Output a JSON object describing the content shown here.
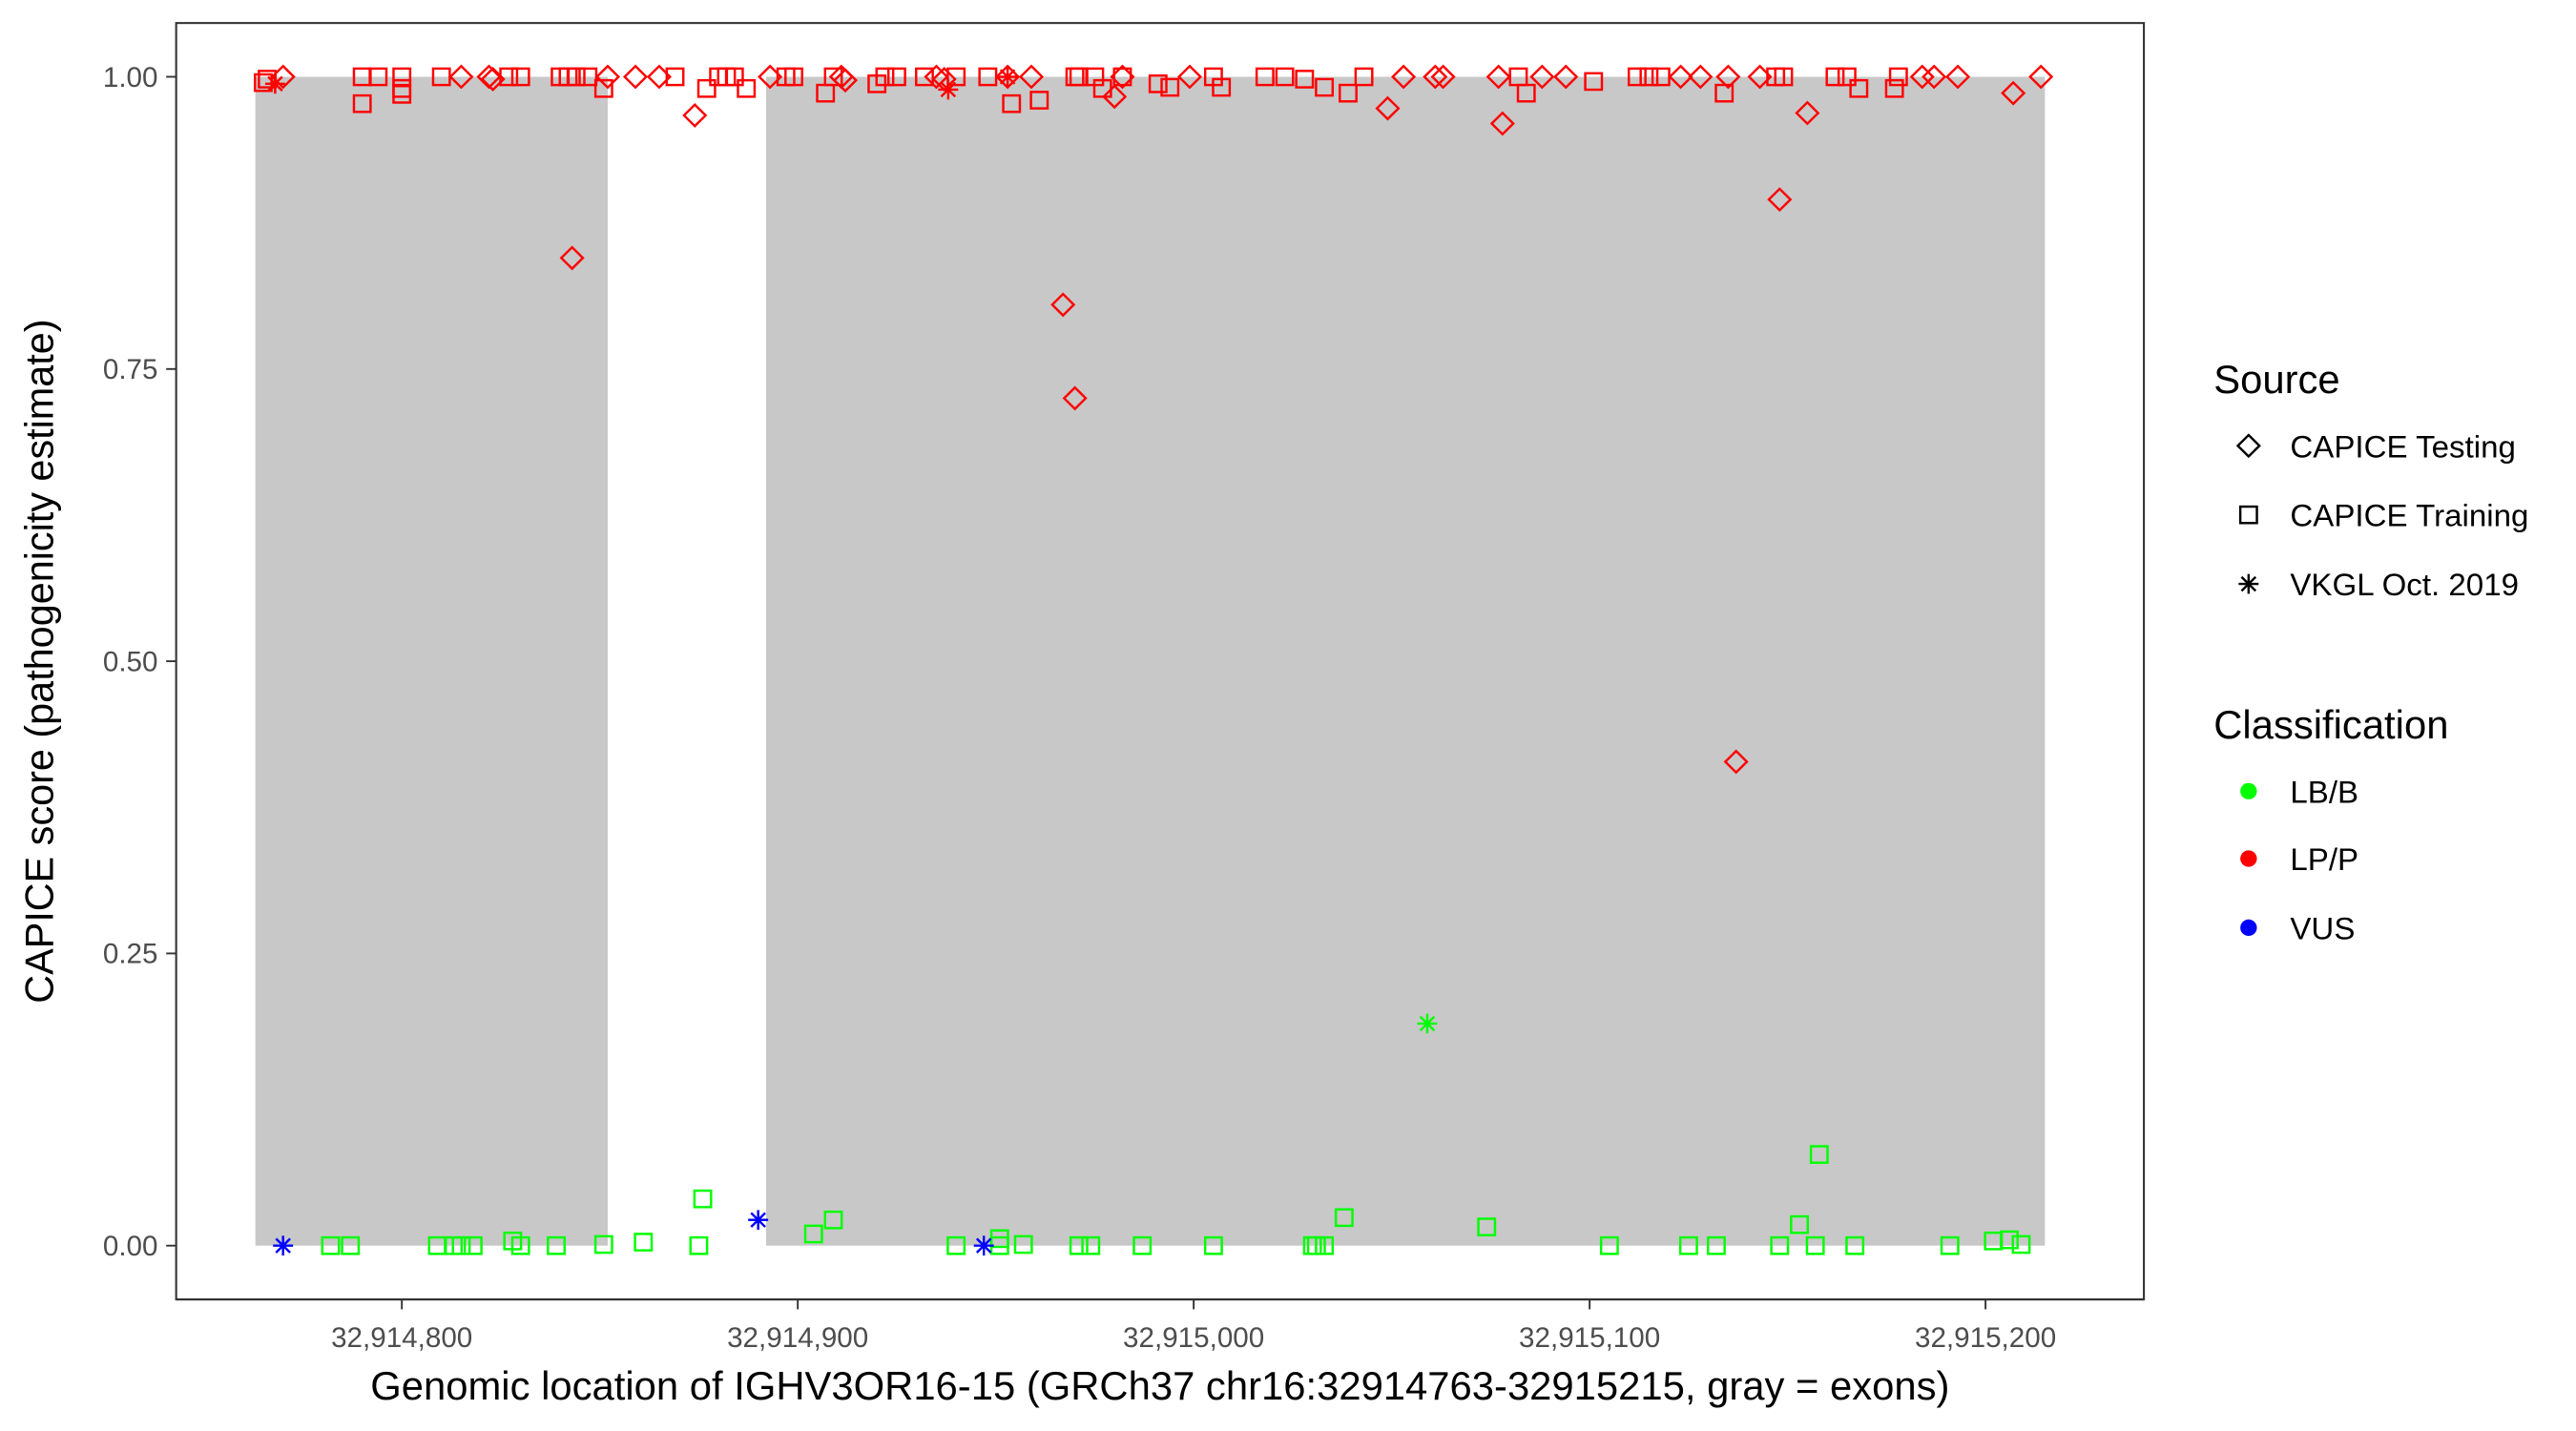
{
  "chart_data": {
    "type": "scatter",
    "xlabel": "Genomic location of IGHV3OR16-15 (GRCh37 chr16:32914763-32915215, gray = exons)",
    "ylabel": "CAPICE score (pathogenicity estimate)",
    "xlim": [
      32914743,
      32915240
    ],
    "ylim": [
      -0.046,
      1.046
    ],
    "x_ticks": [
      32914800,
      32914900,
      32915000,
      32915100,
      32915200
    ],
    "x_tick_labels": [
      "32,914,800",
      "32,914,900",
      "32,915,000",
      "32,915,100",
      "32,915,200"
    ],
    "y_ticks": [
      0,
      0.25,
      0.5,
      0.75,
      1.0
    ],
    "y_tick_labels": [
      "0.00",
      "0.25",
      "0.50",
      "0.75",
      "1.00"
    ],
    "grid": false,
    "exons": [
      [
        32914763,
        32914852
      ],
      [
        32914892,
        32915215
      ]
    ],
    "exon_color": "#c8c8c8",
    "legend_placement": "right",
    "legends": [
      {
        "title": "Source",
        "entries": [
          {
            "label": "CAPICE Testing",
            "shape": "diamond"
          },
          {
            "label": "CAPICE Training",
            "shape": "square"
          },
          {
            "label": "VKGL Oct. 2019",
            "shape": "asterisk"
          }
        ]
      },
      {
        "title": "Classification",
        "entries": [
          {
            "label": "LB/B",
            "color": "#00ff00"
          },
          {
            "label": "LP/P",
            "color": "#ff0000"
          },
          {
            "label": "VUS",
            "color": "#0000ff"
          }
        ]
      }
    ],
    "series": [
      {
        "source": "CAPICE Training",
        "classification": "LP/P",
        "points": [
          [
            32914765,
            0.995
          ],
          [
            32914766,
            0.998
          ],
          [
            32914790,
            0.977
          ],
          [
            32914790,
            1.0
          ],
          [
            32914794,
            1.0
          ],
          [
            32914800,
            1.0
          ],
          [
            32914800,
            0.99
          ],
          [
            32914800,
            0.985
          ],
          [
            32914810,
            1.0
          ],
          [
            32914827,
            1.0
          ],
          [
            32914830,
            1.0
          ],
          [
            32914840,
            1.0
          ],
          [
            32914842,
            1.0
          ],
          [
            32914844,
            1.0
          ],
          [
            32914847,
            1.0
          ],
          [
            32914851,
            0.99
          ],
          [
            32914869,
            1.0
          ],
          [
            32914877,
            0.99
          ],
          [
            32914880,
            1.0
          ],
          [
            32914882,
            1.0
          ],
          [
            32914884,
            1.0
          ],
          [
            32914887,
            0.99
          ],
          [
            32914897,
            1.0
          ],
          [
            32914899,
            1.0
          ],
          [
            32914907,
            0.986
          ],
          [
            32914909,
            1.0
          ],
          [
            32914920,
            0.994
          ],
          [
            32914922,
            1.0
          ],
          [
            32914925,
            1.0
          ],
          [
            32914932,
            1.0
          ],
          [
            32914940,
            1.0
          ],
          [
            32914948,
            1.0
          ],
          [
            32914954,
            0.977
          ],
          [
            32914961,
            0.98
          ],
          [
            32914970,
            1.0
          ],
          [
            32914971,
            1.0
          ],
          [
            32914975,
            1.0
          ],
          [
            32914977,
            0.99
          ],
          [
            32914982,
            1.0
          ],
          [
            32914991,
            0.994
          ],
          [
            32914994,
            0.991
          ],
          [
            32915005,
            1.0
          ],
          [
            32915007,
            0.991
          ],
          [
            32915018,
            1.0
          ],
          [
            32915023,
            1.0
          ],
          [
            32915028,
            0.998
          ],
          [
            32915033,
            0.991
          ],
          [
            32915039,
            0.986
          ],
          [
            32915043,
            1.0
          ],
          [
            32915082,
            1.0
          ],
          [
            32915084,
            0.986
          ],
          [
            32915101,
            0.996
          ],
          [
            32915112,
            1.0
          ],
          [
            32915115,
            1.0
          ],
          [
            32915118,
            1.0
          ],
          [
            32915134,
            0.986
          ],
          [
            32915147,
            1.0
          ],
          [
            32915149,
            1.0
          ],
          [
            32915162,
            1.0
          ],
          [
            32915165,
            1.0
          ],
          [
            32915168,
            0.99
          ],
          [
            32915177,
            0.99
          ],
          [
            32915178,
            1.0
          ]
        ]
      },
      {
        "source": "CAPICE Testing",
        "classification": "LP/P",
        "points": [
          [
            32914770,
            1.0
          ],
          [
            32914815,
            1.0
          ],
          [
            32914822,
            1.0
          ],
          [
            32914823,
            0.998
          ],
          [
            32914843,
            0.845
          ],
          [
            32914852,
            1.0
          ],
          [
            32914859,
            1.0
          ],
          [
            32914865,
            1.0
          ],
          [
            32914874,
            0.967
          ],
          [
            32914893,
            1.0
          ],
          [
            32914911,
            1.0
          ],
          [
            32914912,
            0.997
          ],
          [
            32914935,
            1.0
          ],
          [
            32914937,
            0.998
          ],
          [
            32914953,
            1.0
          ],
          [
            32914959,
            1.0
          ],
          [
            32914967,
            0.805
          ],
          [
            32914970,
            0.725
          ],
          [
            32914980,
            0.983
          ],
          [
            32914982,
            1.0
          ],
          [
            32914999,
            1.0
          ],
          [
            32915049,
            0.973
          ],
          [
            32915053,
            1.0
          ],
          [
            32915061,
            1.0
          ],
          [
            32915063,
            1.0
          ],
          [
            32915077,
            1.0
          ],
          [
            32915078,
            0.96
          ],
          [
            32915088,
            1.0
          ],
          [
            32915094,
            1.0
          ],
          [
            32915123,
            1.0
          ],
          [
            32915128,
            1.0
          ],
          [
            32915135,
            1.0
          ],
          [
            32915137,
            0.414
          ],
          [
            32915143,
            1.0
          ],
          [
            32915148,
            0.895
          ],
          [
            32915155,
            0.969
          ],
          [
            32915184,
            1.0
          ],
          [
            32915187,
            1.0
          ],
          [
            32915193,
            1.0
          ],
          [
            32915207,
            0.986
          ],
          [
            32915214,
            1.0
          ]
        ]
      },
      {
        "source": "VKGL Oct. 2019",
        "classification": "LP/P",
        "points": [
          [
            32914768,
            0.994
          ],
          [
            32914938,
            0.989
          ],
          [
            32914953,
            1.0
          ]
        ]
      },
      {
        "source": "CAPICE Training",
        "classification": "LB/B",
        "points": [
          [
            32914782,
            0.0
          ],
          [
            32914787,
            0.0
          ],
          [
            32914809,
            0.0
          ],
          [
            32914813,
            0.0
          ],
          [
            32914815,
            0.0
          ],
          [
            32914818,
            0.0
          ],
          [
            32914828,
            0.004
          ],
          [
            32914830,
            0.0
          ],
          [
            32914839,
            0.0
          ],
          [
            32914851,
            0.001
          ],
          [
            32914861,
            0.003
          ],
          [
            32914875,
            0.0
          ],
          [
            32914876,
            0.04
          ],
          [
            32914904,
            0.01
          ],
          [
            32914909,
            0.022
          ],
          [
            32914940,
            0.0
          ],
          [
            32914951,
            0.006
          ],
          [
            32914951,
            0.0
          ],
          [
            32914957,
            0.001
          ],
          [
            32914971,
            0.0
          ],
          [
            32914974,
            0.0
          ],
          [
            32914987,
            0.0
          ],
          [
            32915005,
            0.0
          ],
          [
            32915030,
            0.0
          ],
          [
            32915031,
            0.0
          ],
          [
            32915033,
            0.0
          ],
          [
            32915038,
            0.024
          ],
          [
            32915074,
            0.016
          ],
          [
            32915105,
            0.0
          ],
          [
            32915125,
            0.0
          ],
          [
            32915132,
            0.0
          ],
          [
            32915148,
            0.0
          ],
          [
            32915153,
            0.018
          ],
          [
            32915157,
            0.0
          ],
          [
            32915158,
            0.078
          ],
          [
            32915167,
            0.0
          ],
          [
            32915191,
            0.0
          ],
          [
            32915202,
            0.004
          ],
          [
            32915206,
            0.005
          ],
          [
            32915209,
            0.001
          ]
        ]
      },
      {
        "source": "VKGL Oct. 2019",
        "classification": "LB/B",
        "points": [
          [
            32915059,
            0.19
          ]
        ]
      },
      {
        "source": "VKGL Oct. 2019",
        "classification": "VUS",
        "points": [
          [
            32914770,
            0.0
          ],
          [
            32914890,
            0.022
          ],
          [
            32914947,
            0.0
          ]
        ]
      }
    ]
  }
}
